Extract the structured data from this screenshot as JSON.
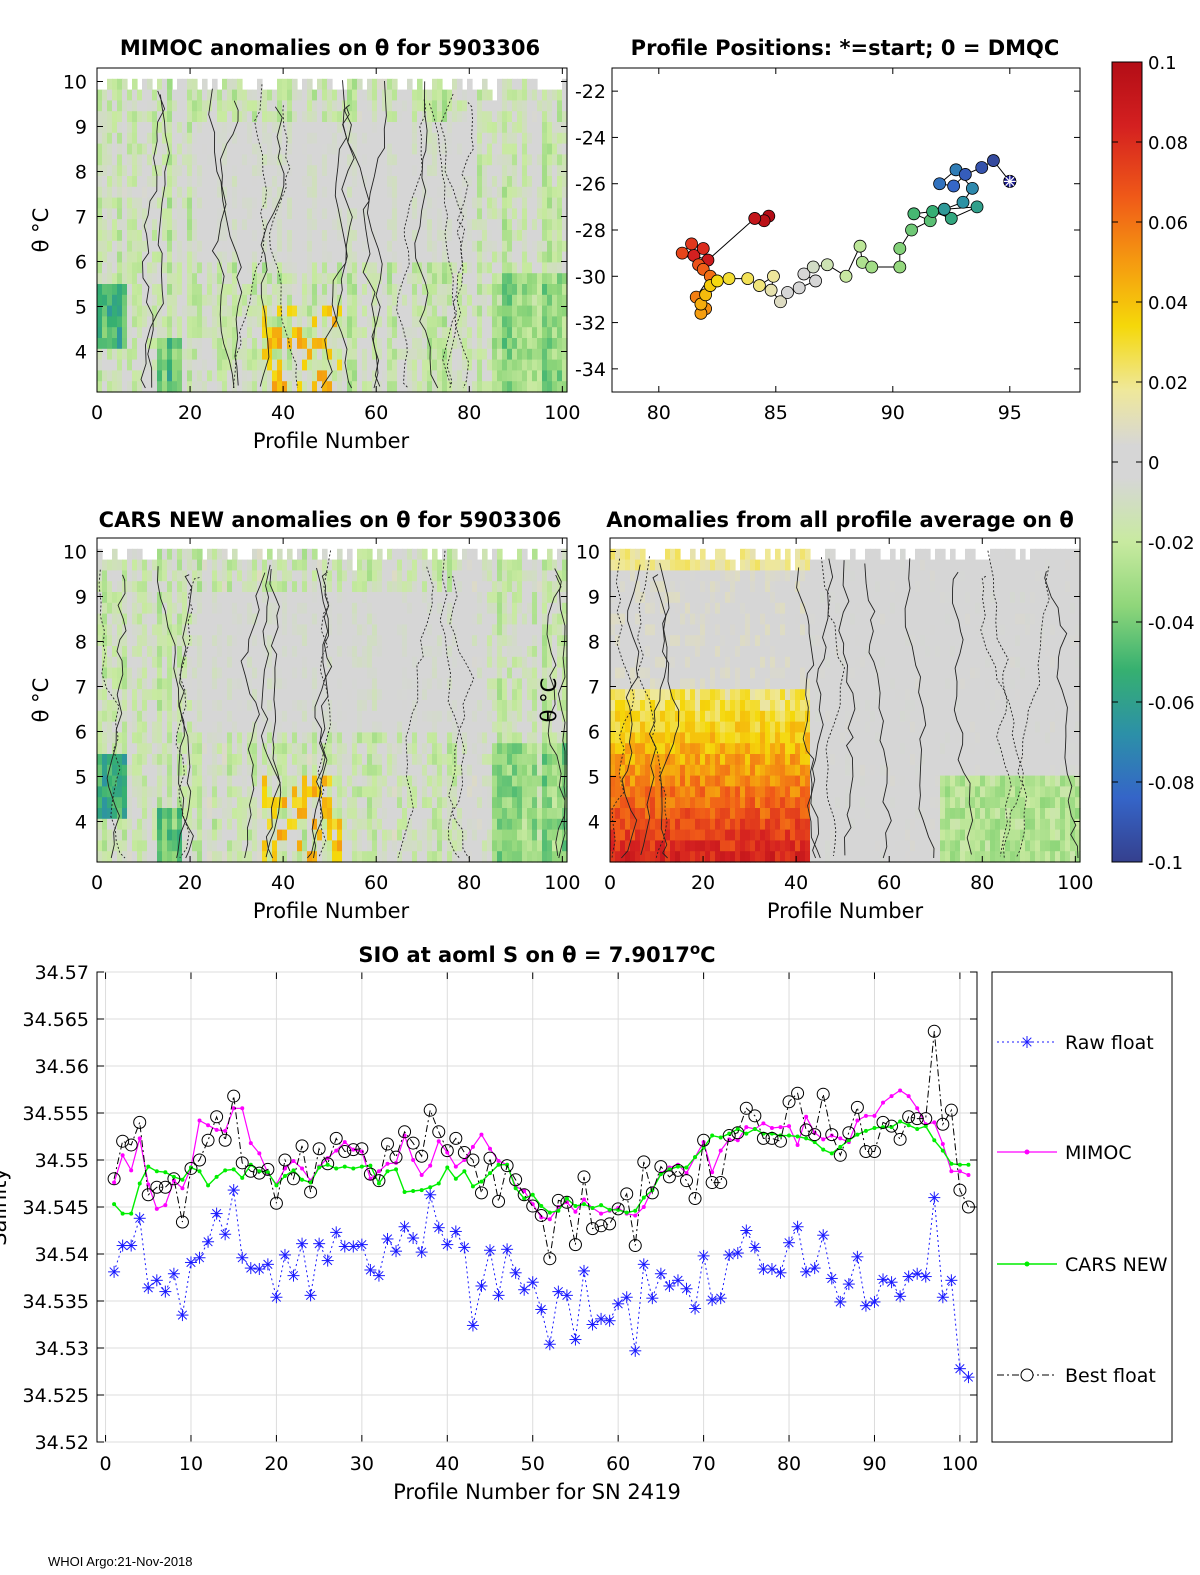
{
  "footer": "WHOI Argo:21-Nov-2018",
  "theta_unit": "°C",
  "colors": {
    "raw": "#1a1aff",
    "mimoc": "#ff00ff",
    "cars": "#00ee00",
    "best": "#000000",
    "map_bg": "#d8d8d8"
  },
  "colorbar": {
    "ticks": [
      "0.1",
      "0.08",
      "0.06",
      "0.04",
      "0.02",
      "0",
      "-0.02",
      "-0.04",
      "-0.06",
      "-0.08",
      "-0.1"
    ],
    "range": [
      -0.1,
      0.1
    ]
  },
  "panels": {
    "mimoc": {
      "title": "MIMOC anomalies on θ  for 5903306",
      "xlabel": "Profile Number",
      "ylabel": "θ °C",
      "xticks": [
        "0",
        "20",
        "40",
        "60",
        "80",
        "100"
      ],
      "yticks": [
        "10",
        "9",
        "8",
        "7",
        "6",
        "5",
        "4"
      ],
      "seed": 3,
      "bias": -0.012,
      "warm_zone": [
        35,
        52
      ]
    },
    "map": {
      "title": "Profile Positions: *=start; 0 = DMQC",
      "xticks": [
        "80",
        "85",
        "90",
        "95"
      ],
      "yticks": [
        "-22",
        "-24",
        "-26",
        "-28",
        "-30",
        "-32",
        "-34"
      ]
    },
    "cars": {
      "title": "CARS NEW anomalies on θ for 5903306",
      "xlabel": "Profile Number",
      "ylabel": "θ °C",
      "xticks": [
        "0",
        "20",
        "40",
        "60",
        "80",
        "100"
      ],
      "yticks": [
        "10",
        "9",
        "8",
        "7",
        "6",
        "5",
        "4"
      ],
      "seed": 7,
      "bias": -0.01,
      "warm_zone": [
        35,
        52
      ]
    },
    "avg": {
      "title": "Anomalies from all profile average on θ",
      "xlabel": "Profile Number",
      "ylabel": "θ °C",
      "xticks": [
        "0",
        "20",
        "40",
        "60",
        "80",
        "100"
      ],
      "yticks": [
        "10",
        "9",
        "8",
        "7",
        "6",
        "5",
        "4"
      ],
      "seed": 11,
      "bias": 0.0,
      "warm_zone": [
        0,
        42
      ]
    }
  },
  "chart_data": [
    {
      "type": "heatmap",
      "title": "MIMOC anomalies on θ  for 5903306",
      "xlabel": "Profile Number",
      "ylabel": "θ °C",
      "xlim": [
        0,
        101
      ],
      "ylim": [
        3.1,
        10.3
      ],
      "colorbar_range": [
        -0.1,
        0.1
      ]
    },
    {
      "type": "scatter",
      "title": "Profile Positions: *=start; 0 = DMQC",
      "xlim": [
        78,
        98
      ],
      "ylim": [
        -35,
        -21
      ],
      "track": [
        [
          95.0,
          -25.9
        ],
        [
          94.3,
          -25.0
        ],
        [
          93.8,
          -25.3
        ],
        [
          93.1,
          -25.6
        ],
        [
          92.6,
          -26.1
        ],
        [
          92.0,
          -26.0
        ],
        [
          92.7,
          -25.4
        ],
        [
          93.4,
          -26.2
        ],
        [
          93.0,
          -26.8
        ],
        [
          92.2,
          -27.1
        ],
        [
          93.6,
          -27.0
        ],
        [
          92.5,
          -27.5
        ],
        [
          91.7,
          -27.2
        ],
        [
          90.9,
          -27.3
        ],
        [
          91.6,
          -27.6
        ],
        [
          90.8,
          -28.0
        ],
        [
          90.3,
          -28.8
        ],
        [
          90.3,
          -29.6
        ],
        [
          89.1,
          -29.6
        ],
        [
          88.7,
          -29.4
        ],
        [
          88.6,
          -28.7
        ],
        [
          88.0,
          -30.0
        ],
        [
          87.2,
          -29.5
        ],
        [
          86.6,
          -29.6
        ],
        [
          86.2,
          -29.9
        ],
        [
          86.7,
          -30.2
        ],
        [
          86.0,
          -30.5
        ],
        [
          85.5,
          -30.7
        ],
        [
          85.2,
          -31.1
        ],
        [
          84.8,
          -30.6
        ],
        [
          84.9,
          -30.0
        ],
        [
          84.3,
          -30.4
        ],
        [
          83.8,
          -30.1
        ],
        [
          83.0,
          -30.1
        ],
        [
          82.5,
          -30.2
        ],
        [
          82.2,
          -30.4
        ],
        [
          82.0,
          -30.8
        ],
        [
          81.8,
          -31.2
        ],
        [
          81.8,
          -31.6
        ],
        [
          82.0,
          -31.4
        ],
        [
          81.6,
          -30.9
        ],
        [
          82.2,
          -30.0
        ],
        [
          81.9,
          -29.7
        ],
        [
          81.7,
          -29.5
        ],
        [
          81.0,
          -29.0
        ],
        [
          81.4,
          -28.6
        ],
        [
          81.9,
          -28.8
        ],
        [
          81.5,
          -29.1
        ],
        [
          82.1,
          -29.3
        ],
        [
          84.1,
          -27.5
        ],
        [
          84.5,
          -27.6
        ],
        [
          84.7,
          -27.4
        ]
      ]
    },
    {
      "type": "heatmap",
      "title": "CARS NEW anomalies on θ for 5903306",
      "xlabel": "Profile Number",
      "ylabel": "θ °C",
      "xlim": [
        0,
        101
      ],
      "ylim": [
        3.1,
        10.3
      ],
      "colorbar_range": [
        -0.1,
        0.1
      ]
    },
    {
      "type": "heatmap",
      "title": "Anomalies from all profile average on θ",
      "xlabel": "Profile Number",
      "ylabel": "θ °C",
      "xlim": [
        0,
        101
      ],
      "ylim": [
        3.1,
        10.3
      ],
      "colorbar_range": [
        -0.1,
        0.1
      ]
    },
    {
      "type": "line",
      "title": "SIO at aoml S on θ = 7.9017",
      "title_sup": "o",
      "title_unit": "C",
      "xlabel": "Profile Number for SN 2419",
      "ylabel": "Salinity",
      "xlim": [
        -1,
        102
      ],
      "ylim": [
        34.52,
        34.57
      ],
      "xticks": [
        "0",
        "10",
        "20",
        "30",
        "40",
        "50",
        "60",
        "70",
        "80",
        "90",
        "100"
      ],
      "yticks": [
        "34.57",
        "34.565",
        "34.56",
        "34.555",
        "34.55",
        "34.545",
        "34.54",
        "34.535",
        "34.53",
        "34.525",
        "34.52"
      ],
      "legend_position": "right",
      "series": [
        {
          "name": "Raw float",
          "values": [
            34.5381,
            34.5409,
            34.5409,
            34.5438,
            34.5364,
            34.5372,
            34.536,
            34.5379,
            34.5335,
            34.5391,
            34.5396,
            34.5413,
            34.5443,
            34.5421,
            34.5468,
            34.5396,
            34.5385,
            34.5384,
            34.5389,
            34.5354,
            34.5399,
            34.5377,
            34.5411,
            34.5356,
            34.5411,
            34.5393,
            34.5423,
            34.5408,
            34.5408,
            34.541,
            34.5383,
            34.5377,
            34.5416,
            34.5403,
            34.5429,
            34.5417,
            34.5402,
            34.5463,
            34.5428,
            34.541,
            34.5424,
            34.5407,
            34.5324,
            34.5366,
            34.5404,
            34.5356,
            34.5405,
            34.538,
            34.5362,
            34.537,
            34.5341,
            34.5304,
            34.536,
            34.5356,
            34.5309,
            34.5382,
            34.5325,
            34.5331,
            34.5329,
            34.5347,
            34.5354,
            34.5297,
            34.5389,
            34.5353,
            34.5379,
            34.5366,
            34.5372,
            34.5363,
            34.5342,
            34.5398,
            34.5351,
            34.5353,
            34.5399,
            34.5401,
            34.5425,
            34.5407,
            34.5384,
            34.5384,
            34.538,
            34.5412,
            34.5429,
            34.5381,
            34.5385,
            34.542,
            34.5374,
            34.5349,
            34.5368,
            34.5397,
            34.5345,
            34.5349,
            34.5373,
            34.537,
            34.5355,
            34.5376,
            34.5379,
            34.5376,
            34.546,
            34.5354,
            34.5372,
            34.5278,
            34.5269
          ]
        },
        {
          "name": "MIMOC",
          "values": [
            34.5476,
            34.5505,
            34.5489,
            34.5523,
            34.5474,
            34.5448,
            34.5452,
            34.5478,
            34.547,
            34.5492,
            34.5542,
            34.5537,
            34.5532,
            34.5531,
            34.5555,
            34.5555,
            34.5518,
            34.5507,
            34.5486,
            34.5474,
            34.5491,
            34.5499,
            34.5491,
            34.5478,
            34.5493,
            34.5502,
            34.551,
            34.5519,
            34.5511,
            34.5509,
            34.548,
            34.5488,
            34.5496,
            34.5497,
            34.5526,
            34.55,
            34.5484,
            34.5494,
            34.552,
            34.5508,
            34.5493,
            34.55,
            34.5514,
            34.5527,
            34.5512,
            34.5499,
            34.5495,
            34.5472,
            34.5467,
            34.5453,
            34.5439,
            34.5437,
            34.545,
            34.5455,
            34.5445,
            34.5458,
            34.5449,
            34.5443,
            34.5446,
            34.5449,
            34.5443,
            34.5441,
            34.545,
            34.5469,
            34.5486,
            34.5492,
            34.5495,
            34.5486,
            34.5503,
            34.5519,
            34.5487,
            34.551,
            34.5522,
            34.5521,
            34.5535,
            34.5533,
            34.5539,
            34.5534,
            34.5535,
            34.5536,
            34.5516,
            34.5546,
            34.5529,
            34.5522,
            34.5526,
            34.5523,
            34.5519,
            34.5542,
            34.5547,
            34.5547,
            34.5561,
            34.5568,
            34.5574,
            34.5568,
            34.5555,
            34.5538,
            34.554,
            34.5517,
            34.5488,
            34.5488,
            34.5484
          ]
        },
        {
          "name": "CARS NEW",
          "values": [
            34.5453,
            34.5443,
            34.5443,
            34.5475,
            34.5493,
            34.5488,
            34.5487,
            34.5482,
            34.5479,
            34.5492,
            34.5488,
            34.5473,
            34.5482,
            34.5489,
            34.549,
            34.5481,
            34.5495,
            34.5488,
            34.5487,
            34.5473,
            34.5483,
            34.5489,
            34.5479,
            34.5476,
            34.5492,
            34.5495,
            34.5491,
            34.5493,
            34.5491,
            34.5493,
            34.5494,
            34.5475,
            34.5488,
            34.549,
            34.5466,
            34.5467,
            34.5468,
            34.5471,
            34.5475,
            34.5492,
            34.548,
            34.5488,
            34.5472,
            34.5477,
            34.5486,
            34.5495,
            34.5495,
            34.547,
            34.5459,
            34.5463,
            34.5451,
            34.5444,
            34.5446,
            34.5459,
            34.5451,
            34.5453,
            34.5449,
            34.5452,
            34.5447,
            34.5447,
            34.5444,
            34.5446,
            34.546,
            34.5468,
            34.5485,
            34.549,
            34.5493,
            34.5492,
            34.5503,
            34.5513,
            34.5526,
            34.5524,
            34.5528,
            34.5533,
            34.5528,
            34.5533,
            34.5528,
            34.5528,
            34.5526,
            34.5526,
            34.5525,
            34.5523,
            34.5519,
            34.5511,
            34.5507,
            34.5514,
            34.5521,
            34.5527,
            34.5531,
            34.5534,
            34.5535,
            34.5535,
            34.5541,
            34.5537,
            34.5533,
            34.5536,
            34.5521,
            34.551,
            34.5496,
            34.5495,
            34.5495
          ]
        },
        {
          "name": "Best float",
          "values": [
            34.548,
            34.552,
            34.5516,
            34.554,
            34.5463,
            34.5471,
            34.5471,
            34.548,
            34.5434,
            34.5491,
            34.55,
            34.5521,
            34.5546,
            34.5521,
            34.5568,
            34.5497,
            34.5488,
            34.5486,
            34.549,
            34.5454,
            34.55,
            34.548,
            34.5515,
            34.5466,
            34.5512,
            34.5496,
            34.5523,
            34.5509,
            34.5511,
            34.5512,
            34.5485,
            34.5478,
            34.5517,
            34.5503,
            34.553,
            34.5518,
            34.5504,
            34.5553,
            34.553,
            34.551,
            34.5523,
            34.5508,
            34.55,
            34.5465,
            34.5502,
            34.5456,
            34.5494,
            34.5479,
            34.5463,
            34.5451,
            34.5441,
            34.5395,
            34.5457,
            34.5455,
            34.541,
            34.5482,
            34.5427,
            34.543,
            34.5432,
            34.5448,
            34.5464,
            34.5409,
            34.5498,
            34.5465,
            34.5493,
            34.5482,
            34.5489,
            34.5478,
            34.5459,
            34.5521,
            34.5476,
            34.5476,
            34.5526,
            34.5529,
            34.5555,
            34.5547,
            34.5523,
            34.5523,
            34.552,
            34.5562,
            34.5571,
            34.5532,
            34.5527,
            34.557,
            34.5527,
            34.5505,
            34.5529,
            34.5556,
            34.5509,
            34.5509,
            34.554,
            34.5536,
            34.5522,
            34.5546,
            34.5544,
            34.5544,
            34.5637,
            34.5538,
            34.5553,
            34.5468,
            34.545
          ]
        }
      ]
    }
  ]
}
